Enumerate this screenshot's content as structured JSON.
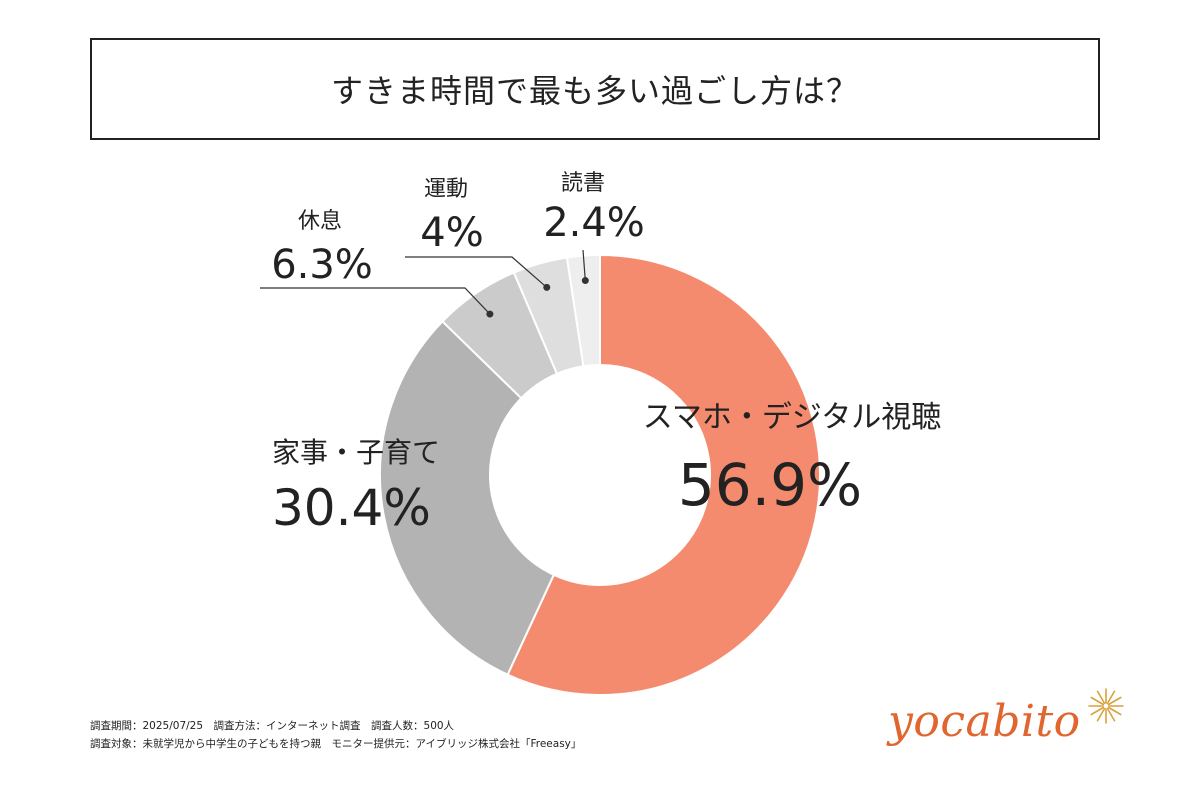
{
  "title": "すきま時間で最も多い過ごし方は？",
  "chart_data": {
    "type": "pie",
    "donut": true,
    "categories": [
      "スマホ・デジタル視聴",
      "家事・子育て",
      "休息",
      "運動",
      "読書"
    ],
    "values": [
      56.9,
      30.4,
      6.3,
      4,
      2.4
    ],
    "value_labels": [
      "56.9%",
      "30.4%",
      "6.3%",
      "4%",
      "2.4%"
    ],
    "colors": [
      "#f58b6e",
      "#b3b3b3",
      "#cbcbcb",
      "#dedede",
      "#eeeeee"
    ],
    "legend": "none"
  },
  "footnotes": {
    "line1": "調査期間：2025/07/25　調査方法：インターネット調査　調査人数：500人",
    "line2": "調査対象：未就学児から中学生の子どもを持つ親　モニター提供元：アイブリッジ株式会社「Freeasy」"
  },
  "brand": {
    "name": "yocabito",
    "color": "#e0652e",
    "icon": "sparkle-icon"
  }
}
